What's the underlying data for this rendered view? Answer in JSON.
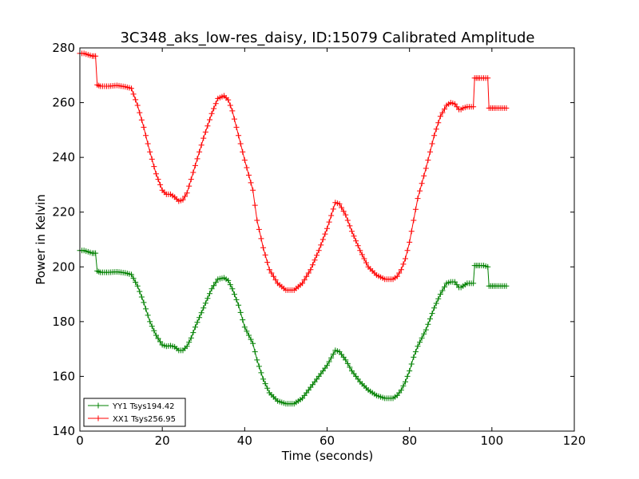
{
  "chart_data": {
    "type": "line",
    "title": "3C348_aks_low-res_daisy, ID:15079 Calibrated Amplitude",
    "xlabel": "Time (seconds)",
    "ylabel": "Power in Kelvin",
    "xlim": [
      0,
      120
    ],
    "ylim": [
      140,
      280
    ],
    "xticks": [
      "0",
      "20",
      "40",
      "60",
      "80",
      "100",
      "120"
    ],
    "yticks": [
      "140",
      "160",
      "180",
      "200",
      "220",
      "240",
      "260",
      "280"
    ],
    "legend_position": "lower-left",
    "grid": false,
    "series": [
      {
        "name": "YY1 Tsys194.42",
        "color": "#008000",
        "marker": "plus",
        "points": [
          [
            0,
            206
          ],
          [
            1,
            206
          ],
          [
            2,
            205.5
          ],
          [
            3,
            205
          ],
          [
            3.8,
            205
          ],
          [
            4.2,
            198.5
          ],
          [
            5,
            198
          ],
          [
            7,
            198
          ],
          [
            9,
            198.2
          ],
          [
            11,
            197.8
          ],
          [
            12.5,
            197.2
          ],
          [
            14,
            193
          ],
          [
            15.5,
            187
          ],
          [
            17,
            180
          ],
          [
            18.5,
            175
          ],
          [
            20,
            171.5
          ],
          [
            21,
            171
          ],
          [
            22,
            171.2
          ],
          [
            23,
            170.8
          ],
          [
            24,
            169.5
          ],
          [
            25,
            169.5
          ],
          [
            26,
            171
          ],
          [
            27,
            174
          ],
          [
            28,
            178
          ],
          [
            30,
            185
          ],
          [
            32,
            192
          ],
          [
            33.5,
            195.5
          ],
          [
            35,
            196
          ],
          [
            36,
            195
          ],
          [
            37,
            192
          ],
          [
            38.5,
            186
          ],
          [
            40,
            178
          ],
          [
            42,
            172
          ],
          [
            43,
            166
          ],
          [
            44.5,
            159
          ],
          [
            46,
            154
          ],
          [
            48,
            151
          ],
          [
            50,
            150
          ],
          [
            52,
            150
          ],
          [
            54,
            152
          ],
          [
            56,
            156
          ],
          [
            58,
            160
          ],
          [
            60,
            164
          ],
          [
            62,
            169.5
          ],
          [
            63,
            169
          ],
          [
            64.5,
            166
          ],
          [
            66,
            162
          ],
          [
            68,
            158
          ],
          [
            70,
            155
          ],
          [
            72,
            153
          ],
          [
            74,
            152
          ],
          [
            76,
            152
          ],
          [
            77,
            153
          ],
          [
            78,
            155
          ],
          [
            79,
            158
          ],
          [
            80,
            162
          ],
          [
            81,
            167
          ],
          [
            82,
            171
          ],
          [
            84,
            177
          ],
          [
            86,
            185
          ],
          [
            87.5,
            190
          ],
          [
            89,
            194
          ],
          [
            90,
            194.5
          ],
          [
            91,
            194.5
          ],
          [
            92,
            192.5
          ],
          [
            92.5,
            192.5
          ],
          [
            93,
            193
          ],
          [
            94,
            194
          ],
          [
            95.5,
            194
          ],
          [
            95.8,
            200.5
          ],
          [
            97,
            200.5
          ],
          [
            98,
            200.5
          ],
          [
            99,
            200
          ],
          [
            99.3,
            193
          ],
          [
            101,
            193
          ],
          [
            102,
            193
          ],
          [
            103.5,
            193
          ]
        ]
      },
      {
        "name": "XX1 Tsys256.95",
        "color": "#ff0000",
        "marker": "plus",
        "points": [
          [
            0,
            278
          ],
          [
            1,
            278
          ],
          [
            2,
            277.5
          ],
          [
            3,
            277
          ],
          [
            3.8,
            277
          ],
          [
            4.2,
            266.5
          ],
          [
            5,
            266
          ],
          [
            7,
            266
          ],
          [
            9,
            266.3
          ],
          [
            11,
            265.8
          ],
          [
            12.5,
            265.2
          ],
          [
            14,
            259
          ],
          [
            15.5,
            251
          ],
          [
            17,
            242
          ],
          [
            18.5,
            234
          ],
          [
            20,
            228
          ],
          [
            21,
            226.5
          ],
          [
            22,
            226.5
          ],
          [
            23,
            225.5
          ],
          [
            24,
            224
          ],
          [
            25,
            224.5
          ],
          [
            26,
            227
          ],
          [
            27,
            232
          ],
          [
            28,
            237
          ],
          [
            30,
            247
          ],
          [
            32,
            256
          ],
          [
            33.5,
            261.5
          ],
          [
            35,
            262.5
          ],
          [
            36,
            261
          ],
          [
            37,
            257
          ],
          [
            38.5,
            248
          ],
          [
            40,
            239
          ],
          [
            42,
            228
          ],
          [
            43,
            217
          ],
          [
            44.5,
            207
          ],
          [
            46,
            199
          ],
          [
            48,
            194
          ],
          [
            50,
            191.5
          ],
          [
            52,
            191.5
          ],
          [
            54,
            194
          ],
          [
            56,
            199
          ],
          [
            58,
            206
          ],
          [
            60,
            214
          ],
          [
            62,
            223.5
          ],
          [
            63,
            223
          ],
          [
            64.5,
            219
          ],
          [
            66,
            213
          ],
          [
            68,
            206
          ],
          [
            70,
            200
          ],
          [
            72,
            197
          ],
          [
            74,
            195.5
          ],
          [
            76,
            195.5
          ],
          [
            77,
            196.5
          ],
          [
            78,
            199
          ],
          [
            79,
            203
          ],
          [
            80,
            209
          ],
          [
            81,
            217
          ],
          [
            82,
            225
          ],
          [
            84,
            236
          ],
          [
            86,
            248
          ],
          [
            87.5,
            255
          ],
          [
            89,
            259
          ],
          [
            90,
            260
          ],
          [
            91,
            259.5
          ],
          [
            92,
            257.5
          ],
          [
            92.5,
            257.5
          ],
          [
            93,
            258
          ],
          [
            94,
            258.5
          ],
          [
            95.5,
            258.5
          ],
          [
            95.8,
            269
          ],
          [
            97,
            269
          ],
          [
            98,
            269
          ],
          [
            99,
            269
          ],
          [
            99.3,
            258
          ],
          [
            101,
            258
          ],
          [
            102,
            258
          ],
          [
            103.5,
            258
          ]
        ]
      }
    ]
  }
}
